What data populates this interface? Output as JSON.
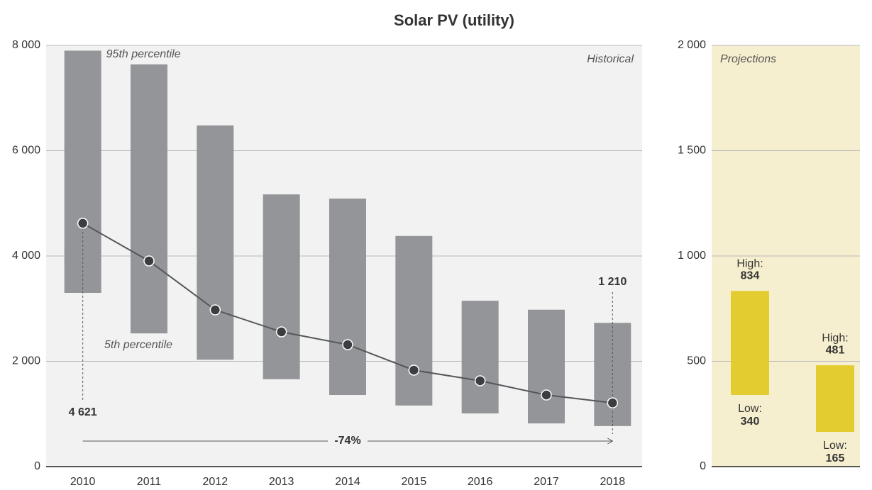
{
  "chart_data": [
    {
      "type": "range_line",
      "title": "Solar PV (utility)",
      "categories": [
        "2010",
        "2011",
        "2012",
        "2013",
        "2014",
        "2015",
        "2016",
        "2017",
        "2018"
      ],
      "high": [
        7900,
        7640,
        6480,
        5170,
        5090,
        4380,
        3150,
        2980,
        2730
      ],
      "low": [
        3300,
        2530,
        2030,
        1660,
        1360,
        1160,
        1010,
        820,
        770
      ],
      "values": [
        4621,
        3906,
        2976,
        2559,
        2316,
        1832,
        1630,
        1360,
        1210
      ],
      "value_labels": [
        "4 621",
        null,
        null,
        null,
        null,
        null,
        null,
        null,
        "1 210"
      ],
      "bar_color": "#939598",
      "line_color": "#555659",
      "background": "#f1f2f1",
      "ylim": [
        0,
        8000
      ],
      "yticks": [
        0,
        {
          "value": 2000,
          "label": "2 000"
        },
        {
          "value": 4000,
          "label": "4 000"
        },
        {
          "value": 6000,
          "label": "6 000"
        },
        {
          "value": 8000,
          "label": "8 000"
        }
      ],
      "grid": true,
      "annotations": {
        "high": "95th percentile",
        "low": "5th percentile",
        "panel": "Historical",
        "change": "-74%"
      }
    },
    {
      "type": "range",
      "high": [
        834,
        481
      ],
      "low": [
        340,
        165
      ],
      "high_label": "High:",
      "low_label": "Low:",
      "bar_color": "#e3cc30",
      "background": "#f6efcf",
      "ylim": [
        0,
        2000
      ],
      "yticks": [
        0,
        500,
        {
          "value": 1000,
          "label": "1 000"
        },
        {
          "value": 1500,
          "label": "1 500"
        },
        {
          "value": 2000,
          "label": "2 000"
        }
      ],
      "grid": true,
      "annotations": {
        "panel": "Projections"
      }
    }
  ]
}
